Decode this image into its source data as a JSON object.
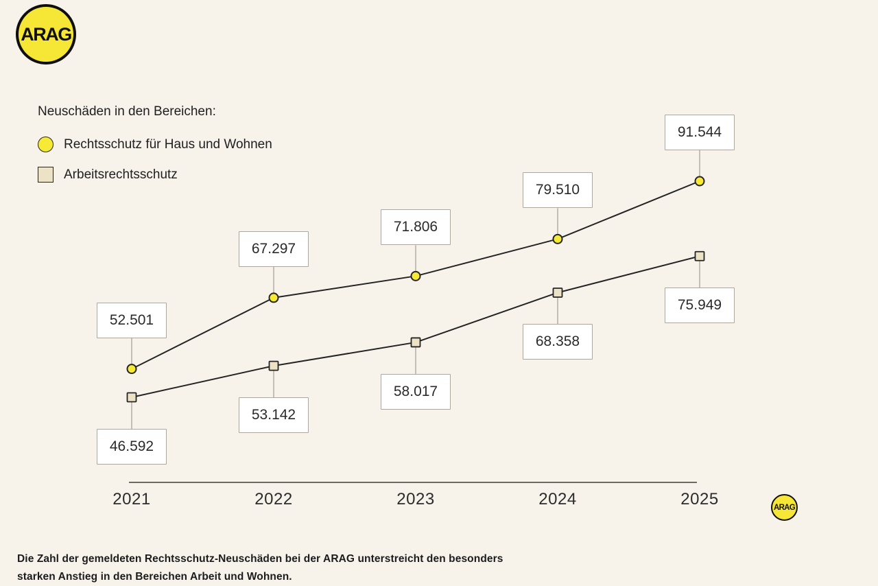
{
  "window": {
    "background": "#f7f3eb"
  },
  "logo": {
    "text": "ARAG",
    "fill": "#f6e636"
  },
  "legend": {
    "title": "Neuschäden in den Bereichen:",
    "items": [
      {
        "label": "Rechtsschutz für Haus und Wohnen",
        "marker": "circle",
        "color": "#f7ea36"
      },
      {
        "label": "Arbeitsrechtsschutz",
        "marker": "square",
        "color": "#ece3c6"
      }
    ]
  },
  "chart_data": {
    "type": "line",
    "x": [
      "2021",
      "2022",
      "2023",
      "2024",
      "2025"
    ],
    "series": [
      {
        "name": "Rechtsschutz für Haus und Wohnen",
        "marker": "circle",
        "color": "#f7ea36",
        "values": [
          52501,
          67297,
          71806,
          79510,
          91544
        ],
        "labels": [
          "52.501",
          "67.297",
          "71.806",
          "79.510",
          "91.544"
        ],
        "label_position": "above"
      },
      {
        "name": "Arbeitsrechtsschutz",
        "marker": "square",
        "color": "#ece3c6",
        "values": [
          46592,
          53142,
          58017,
          68358,
          75949
        ],
        "labels": [
          "46.592",
          "53.142",
          "58.017",
          "68.358",
          "75.949"
        ],
        "label_position": "below"
      }
    ],
    "line_color": "#242424",
    "axis_color": "#6e6a63",
    "connector_color": "#b3ada2",
    "grid": false,
    "legend_position": "top-left",
    "xlabel": "",
    "ylabel": ""
  },
  "badge": {
    "text": "ARAG"
  },
  "footer": {
    "caption_line1": "Die Zahl der gemeldeten Rechtsschutz-Neuschäden bei der ARAG unterstreicht den besonders",
    "caption_line2": "starken Anstieg in den Bereichen Arbeit und Wohnen."
  }
}
